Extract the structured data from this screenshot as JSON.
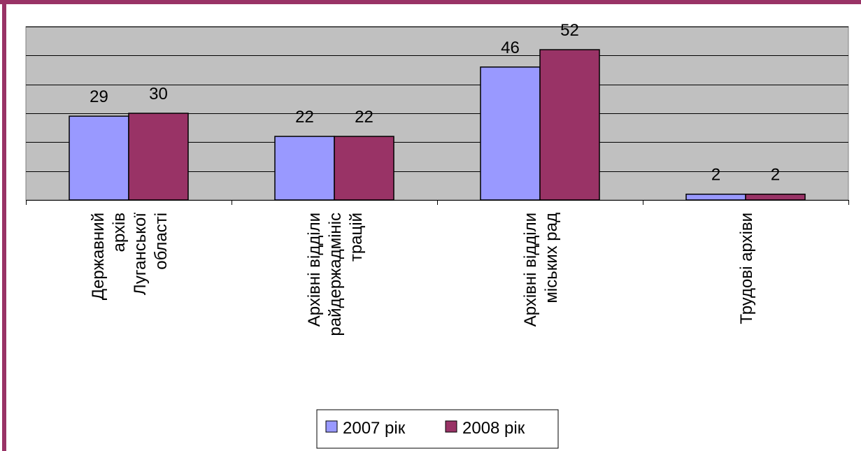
{
  "colors": {
    "frame": "#993366",
    "plot_bg": "#c0c0c0",
    "gridline": "#000000",
    "series_2007": "#9999ff",
    "series_2008": "#993366"
  },
  "chart_data": {
    "type": "bar",
    "categories": [
      [
        "Державний",
        "архів",
        "Луганської",
        "області"
      ],
      [
        "Архівні відділи",
        "райдержадмініс",
        "трацій"
      ],
      [
        "Архівні відділи",
        "міських рад"
      ],
      [
        "Трудові архіви"
      ]
    ],
    "series": [
      {
        "name": "2007 рік",
        "values": [
          29,
          22,
          46,
          2
        ]
      },
      {
        "name": "2008 рік",
        "values": [
          30,
          22,
          52,
          2
        ]
      }
    ],
    "ylim": [
      0,
      60
    ],
    "y_gridlines": [
      10,
      20,
      30,
      40,
      50,
      60
    ],
    "data_labels": true,
    "grid": true,
    "legend": "bottom"
  }
}
